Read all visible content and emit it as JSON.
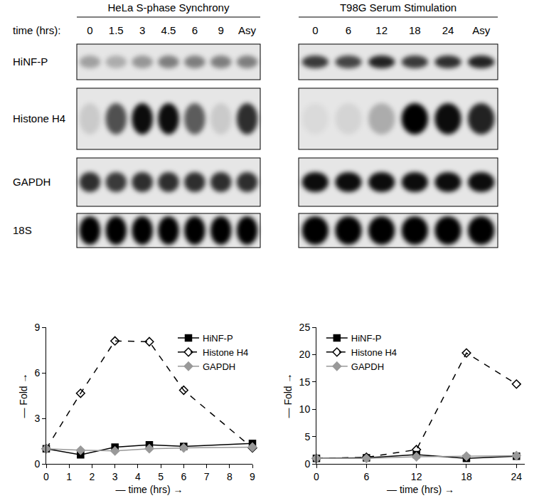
{
  "blots": {
    "time_label": "time (hrs):",
    "row_labels": [
      "HiNF-P",
      "Histone H4",
      "GAPDH",
      "18S"
    ],
    "panels": [
      {
        "title": "HeLa S-phase Synchrony",
        "lanes": [
          "0",
          "1.5",
          "3",
          "4.5",
          "6",
          "9",
          "Asy"
        ],
        "intensity": [
          [
            0.3,
            0.25,
            0.35,
            0.45,
            0.45,
            0.45,
            0.45
          ],
          [
            0.12,
            0.65,
            0.95,
            0.95,
            0.6,
            0.12,
            0.8
          ],
          [
            0.8,
            0.75,
            0.8,
            0.8,
            0.8,
            0.8,
            0.8
          ],
          [
            1,
            1,
            1,
            1,
            1,
            1,
            1
          ]
        ]
      },
      {
        "title": "T98G Serum Stimulation",
        "lanes": [
          "0",
          "6",
          "12",
          "18",
          "24",
          "Asy"
        ],
        "intensity": [
          [
            0.75,
            0.7,
            0.85,
            0.75,
            0.8,
            0.85
          ],
          [
            0.05,
            0.08,
            0.25,
            1,
            0.95,
            0.85
          ],
          [
            0.95,
            0.95,
            0.95,
            0.95,
            0.95,
            0.95
          ],
          [
            1,
            1,
            1,
            1,
            1,
            1
          ]
        ]
      }
    ]
  },
  "chart_data": [
    {
      "type": "line",
      "xlabel": "— time (hrs) →",
      "ylabel": "— Fold →",
      "x": [
        0,
        1.5,
        3,
        4.5,
        6,
        9
      ],
      "xlim": [
        0,
        9
      ],
      "xticks": [
        0,
        1,
        2,
        3,
        4,
        5,
        6,
        7,
        8,
        9
      ],
      "ylim": [
        0,
        9
      ],
      "yticks": [
        0,
        3,
        6,
        9
      ],
      "grid": false,
      "legend": "top right",
      "series": [
        {
          "name": "HiNF-P",
          "color": "#000000",
          "marker": "square",
          "line_style": "solid",
          "values": [
            1,
            0.6,
            1.1,
            1.25,
            1.15,
            1.35
          ]
        },
        {
          "name": "Histone H4",
          "color": "#000000",
          "marker": "diamond-open",
          "line_style": "dash",
          "values": [
            1,
            4.65,
            8.1,
            8.05,
            4.85,
            1.05
          ]
        },
        {
          "name": "GAPDH",
          "color": "#999999",
          "marker": "diamond",
          "line_style": "solid",
          "values": [
            1,
            0.9,
            0.85,
            1.0,
            1.05,
            1.1
          ]
        }
      ]
    },
    {
      "type": "line",
      "xlabel": "— time (hrs) →",
      "ylabel": "— Fold →",
      "x": [
        0,
        6,
        12,
        18,
        24
      ],
      "xlim": [
        0,
        25
      ],
      "xticks": [
        0,
        6,
        12,
        18,
        24
      ],
      "ylim": [
        0,
        25
      ],
      "yticks": [
        0,
        5,
        10,
        15,
        20,
        25
      ],
      "grid": false,
      "legend": "top left",
      "series": [
        {
          "name": "HiNF-P",
          "color": "#000000",
          "marker": "square",
          "line_style": "solid",
          "values": [
            1,
            1.1,
            1.7,
            1.0,
            1.4
          ]
        },
        {
          "name": "Histone H4",
          "color": "#000000",
          "marker": "diamond-open",
          "line_style": "dash",
          "values": [
            1,
            1.2,
            2.6,
            20.3,
            14.6
          ]
        },
        {
          "name": "GAPDH",
          "color": "#999999",
          "marker": "diamond",
          "line_style": "solid",
          "values": [
            1,
            1.0,
            1.3,
            1.4,
            1.5
          ]
        }
      ]
    }
  ]
}
